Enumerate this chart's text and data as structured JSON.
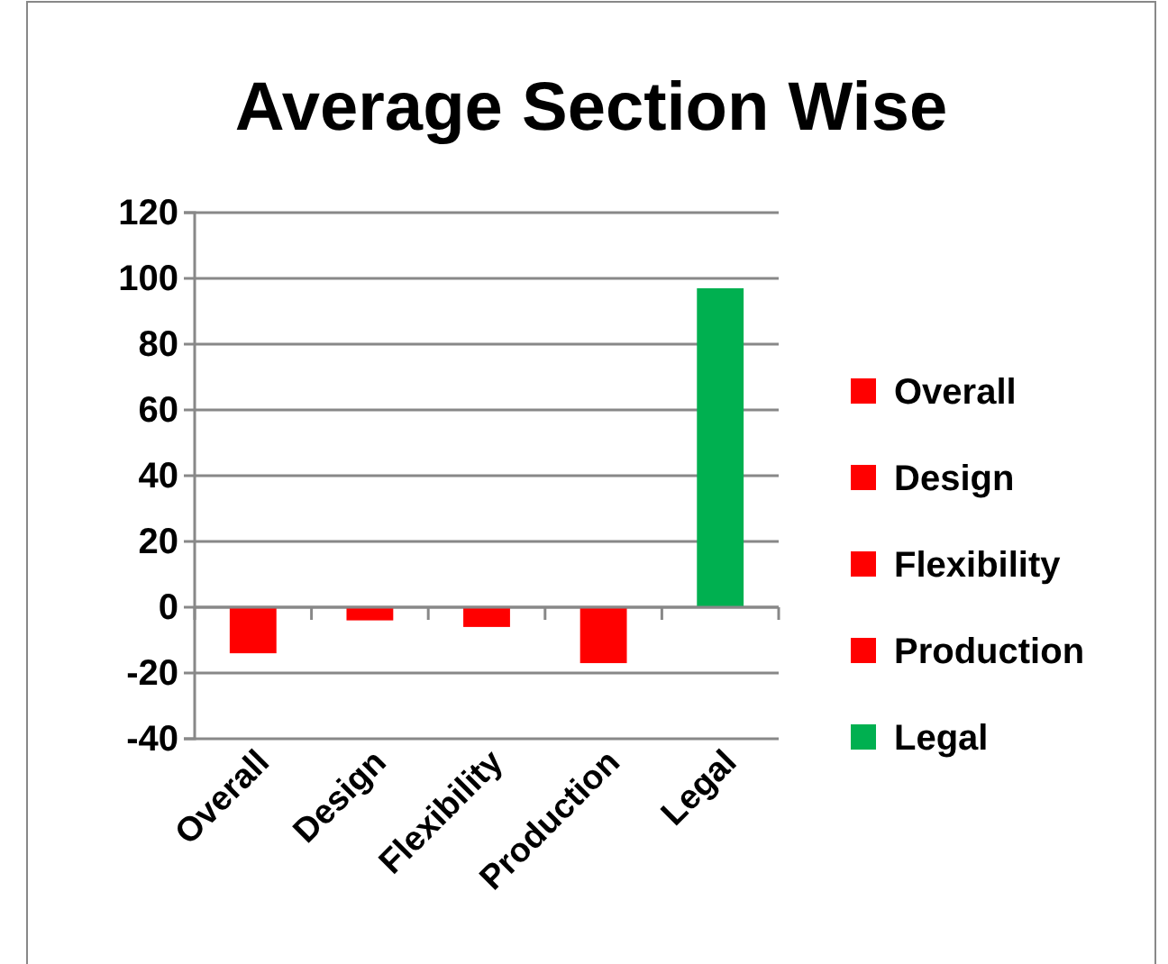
{
  "chart_data": {
    "type": "bar",
    "title": "Average Section Wise",
    "categories": [
      "Overall",
      "Design",
      "Flexibility",
      "Production",
      "Legal"
    ],
    "series": [
      {
        "name": "Overall",
        "color": "#ff0000",
        "values": [
          -14,
          null,
          null,
          null,
          null
        ]
      },
      {
        "name": "Design",
        "color": "#ff0000",
        "values": [
          null,
          -4,
          null,
          null,
          null
        ]
      },
      {
        "name": "Flexibility",
        "color": "#ff0000",
        "values": [
          null,
          null,
          -6,
          null,
          null
        ]
      },
      {
        "name": "Production",
        "color": "#ff0000",
        "values": [
          null,
          null,
          null,
          -17,
          null
        ]
      },
      {
        "name": "Legal",
        "color": "#00b050",
        "values": [
          null,
          null,
          null,
          null,
          97
        ]
      }
    ],
    "ylim": [
      -40,
      120
    ],
    "yticks": [
      -40,
      -20,
      0,
      20,
      40,
      60,
      80,
      100,
      120
    ],
    "grid": "y",
    "legend": "right"
  }
}
